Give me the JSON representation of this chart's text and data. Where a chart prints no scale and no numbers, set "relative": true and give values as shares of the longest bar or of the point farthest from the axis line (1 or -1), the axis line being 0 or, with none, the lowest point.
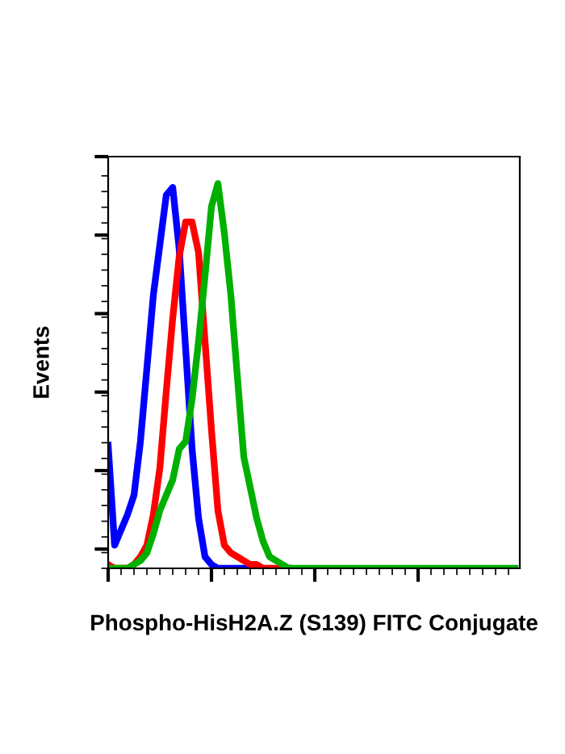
{
  "chart_data": {
    "type": "line",
    "relative": true,
    "xlabel": "Phospho-HisH2A.Z (S139) FITC Conjugate",
    "ylabel": "Events",
    "tick_labels": false,
    "grid": false,
    "marker": "none",
    "line_style": "solid",
    "categories": [
      null,
      null,
      null,
      null,
      null,
      null,
      null,
      null,
      null,
      null,
      null,
      null,
      null,
      null,
      null,
      null,
      null,
      null,
      null,
      null,
      null,
      null,
      null,
      null,
      null,
      null,
      null,
      null,
      null,
      null,
      null,
      null,
      null,
      null,
      null,
      null,
      null,
      null,
      null,
      null,
      null,
      null,
      null,
      null,
      null,
      null,
      null,
      null,
      null,
      null,
      null,
      null,
      null,
      null,
      null,
      null,
      null,
      null,
      null,
      null,
      null,
      null,
      null,
      null
    ],
    "series": [
      {
        "color": "#0000ff",
        "values": [
          0.32,
          0.06,
          0.1,
          0.14,
          0.19,
          0.33,
          0.52,
          0.71,
          0.84,
          0.97,
          0.99,
          0.83,
          0.57,
          0.31,
          0.13,
          0.03,
          0.01,
          0,
          0,
          0,
          0,
          0,
          0,
          0,
          null,
          null,
          null,
          null,
          null,
          null,
          null,
          null,
          null,
          null,
          null,
          null,
          null,
          null,
          null,
          null,
          null,
          null,
          null,
          null,
          null,
          null,
          null,
          null,
          null,
          null,
          null,
          null,
          null,
          null,
          null,
          null,
          null,
          null,
          null,
          null,
          null,
          null,
          null,
          null
        ]
      },
      {
        "color": "#ff0000",
        "values": [
          0.01,
          0,
          0,
          0,
          0.01,
          0.03,
          0.06,
          0.14,
          0.26,
          0.46,
          0.65,
          0.81,
          0.9,
          0.9,
          0.82,
          0.59,
          0.36,
          0.15,
          0.06,
          0.04,
          0.03,
          0.02,
          0.01,
          0.01,
          0,
          0,
          0,
          0,
          0,
          null,
          null,
          null,
          null,
          null,
          null,
          null,
          null,
          null,
          null,
          null,
          null,
          null,
          null,
          null,
          null,
          null,
          null,
          null,
          null,
          null,
          null,
          null,
          null,
          null,
          null,
          null,
          null,
          null,
          null,
          null,
          null,
          null,
          null,
          null
        ]
      },
      {
        "color": "#00b000",
        "values": [
          0,
          0,
          0,
          0,
          0.01,
          0.02,
          0.04,
          0.09,
          0.15,
          0.19,
          0.23,
          0.31,
          0.33,
          0.44,
          0.59,
          0.76,
          0.94,
          1.0,
          0.87,
          0.71,
          0.5,
          0.29,
          0.21,
          0.13,
          0.07,
          0.03,
          0.02,
          0.01,
          0,
          0,
          0,
          0,
          0,
          0,
          0,
          0,
          0,
          0,
          0,
          0,
          0,
          0,
          0,
          0,
          0,
          0,
          0,
          0,
          0,
          0,
          0,
          0,
          0,
          0,
          0,
          0,
          0,
          0,
          0,
          0,
          0,
          0,
          0,
          0
        ]
      }
    ]
  }
}
